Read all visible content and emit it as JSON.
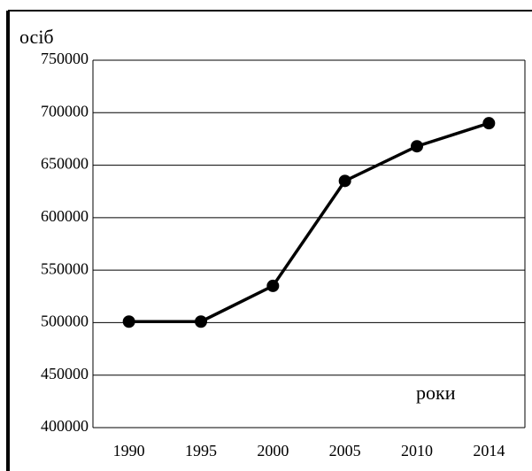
{
  "chart_data": {
    "type": "line",
    "y_label": "осіб",
    "x_label": "роки",
    "categories": [
      "1990",
      "1995",
      "2000",
      "2005",
      "2010",
      "2014"
    ],
    "values": [
      501000,
      501000,
      535000,
      635000,
      668000,
      690000
    ],
    "color": "#000000",
    "ylim": [
      400000,
      750000
    ],
    "yticks": [
      400000,
      450000,
      500000,
      550000,
      600000,
      650000,
      700000,
      750000
    ],
    "grid": true
  }
}
